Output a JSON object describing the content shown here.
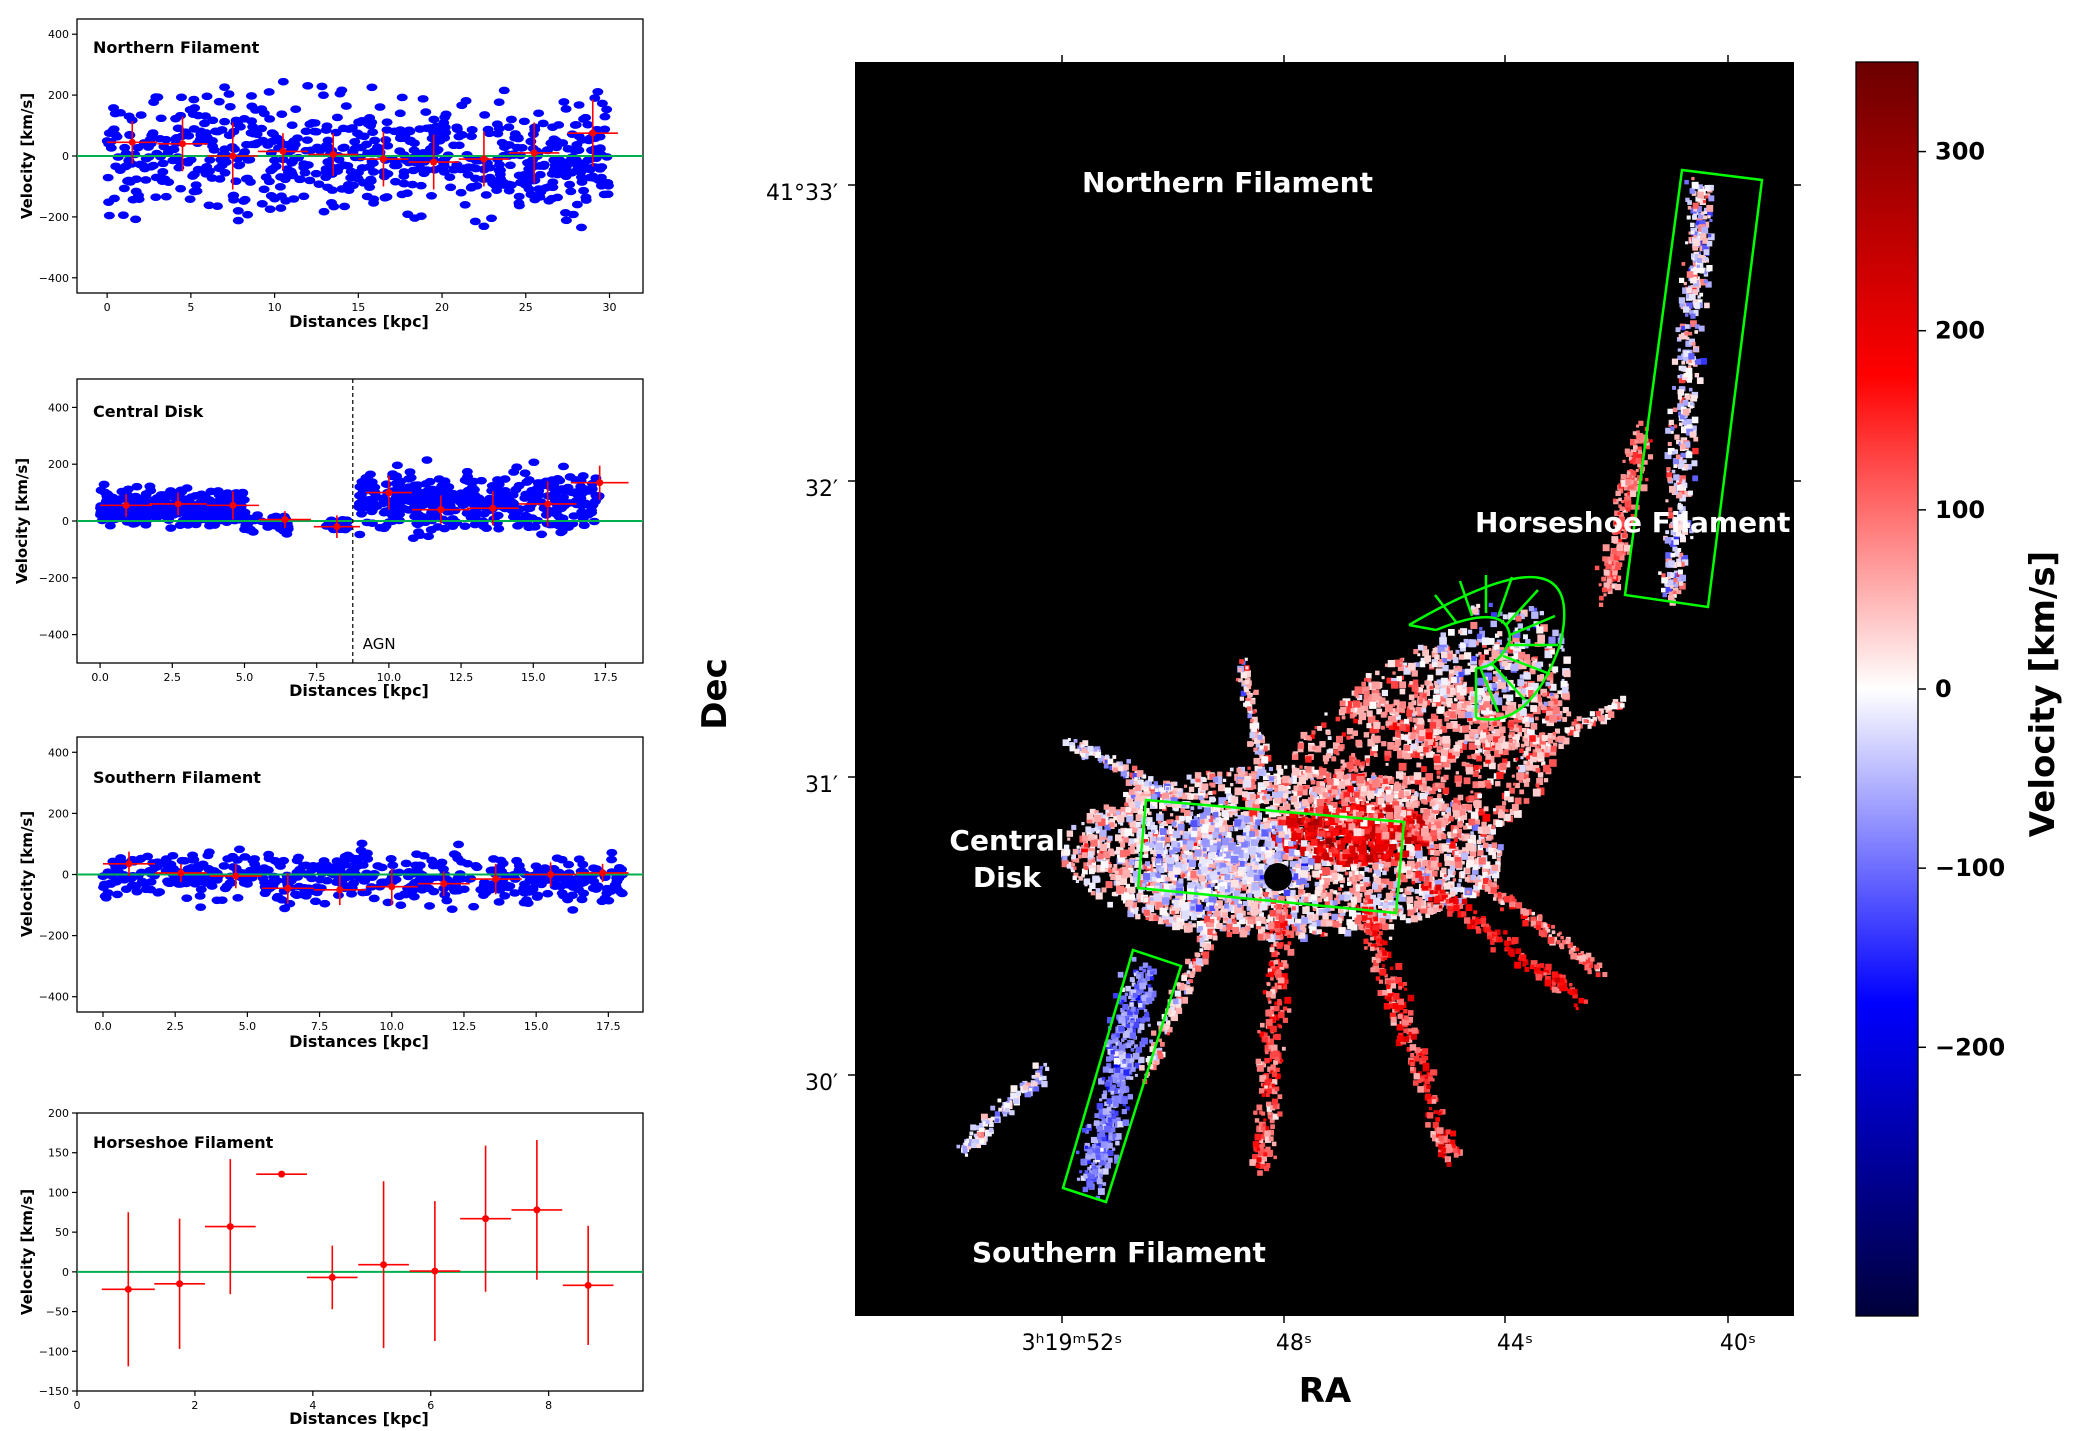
{
  "panels": [
    {
      "id": "northern",
      "title": "Northern Filament",
      "xlabel": "Distances [kpc]",
      "ylabel": "Velocity [km/s]",
      "xlim": [
        -1.8,
        32
      ],
      "ylim": [
        -450,
        450
      ],
      "xticks": [
        0,
        5,
        10,
        15,
        20,
        25,
        30
      ],
      "xtick_labels": [
        "0",
        "5",
        "10",
        "15",
        "20",
        "25",
        "30"
      ],
      "yticks": [
        -400,
        -200,
        0,
        200,
        400
      ],
      "ytick_labels": [
        "−400",
        "−200",
        "0",
        "200",
        "400"
      ],
      "scatter_range": [
        0,
        30
      ],
      "scatter_spread": 130,
      "binned": [
        {
          "x": 1.5,
          "y": 45,
          "xerr": 1.5,
          "yerr": 70
        },
        {
          "x": 4.5,
          "y": 40,
          "xerr": 1.5,
          "yerr": 90
        },
        {
          "x": 7.5,
          "y": 0,
          "xerr": 1.5,
          "yerr": 110
        },
        {
          "x": 10.5,
          "y": 15,
          "xerr": 1.5,
          "yerr": 60
        },
        {
          "x": 13.5,
          "y": 5,
          "xerr": 1.5,
          "yerr": 70
        },
        {
          "x": 16.5,
          "y": -10,
          "xerr": 1.5,
          "yerr": 90
        },
        {
          "x": 19.5,
          "y": -20,
          "xerr": 1.5,
          "yerr": 90
        },
        {
          "x": 22.5,
          "y": -10,
          "xerr": 1.5,
          "yerr": 90
        },
        {
          "x": 25.5,
          "y": 10,
          "xerr": 1.5,
          "yerr": 100
        },
        {
          "x": 29,
          "y": 75,
          "xerr": 1.5,
          "yerr": 110
        }
      ]
    },
    {
      "id": "central",
      "title": "Central Disk",
      "xlabel": "Distances [kpc]",
      "ylabel": "Velocity [km/s]",
      "xlim": [
        -0.8,
        18.8
      ],
      "ylim": [
        -500,
        500
      ],
      "xticks": [
        0,
        2.5,
        5,
        7.5,
        10,
        12.5,
        15,
        17.5
      ],
      "xtick_labels": [
        "0.0",
        "2.5",
        "5.0",
        "7.5",
        "10.0",
        "12.5",
        "15.0",
        "17.5"
      ],
      "yticks": [
        -400,
        -200,
        0,
        200,
        400
      ],
      "ytick_labels": [
        "−400",
        "−200",
        "0",
        "200",
        "400"
      ],
      "agn_x": 8.75,
      "agn_label": "AGN",
      "binned": [
        {
          "x": 0.9,
          "y": 55,
          "xerr": 0.9,
          "yerr": 40
        },
        {
          "x": 2.7,
          "y": 60,
          "xerr": 1.0,
          "yerr": 40
        },
        {
          "x": 4.6,
          "y": 55,
          "xerr": 0.9,
          "yerr": 50
        },
        {
          "x": 6.4,
          "y": 5,
          "xerr": 0.9,
          "yerr": 30
        },
        {
          "x": 8.2,
          "y": -20,
          "xerr": 0.8,
          "yerr": 40
        },
        {
          "x": 10.0,
          "y": 100,
          "xerr": 0.8,
          "yerr": 60
        },
        {
          "x": 11.8,
          "y": 40,
          "xerr": 1.0,
          "yerr": 50
        },
        {
          "x": 13.6,
          "y": 45,
          "xerr": 0.9,
          "yerr": 60
        },
        {
          "x": 15.5,
          "y": 60,
          "xerr": 1.0,
          "yerr": 80
        },
        {
          "x": 17.3,
          "y": 135,
          "xerr": 1.0,
          "yerr": 60
        }
      ]
    },
    {
      "id": "southern",
      "title": "Southern Filament",
      "xlabel": "Distances [kpc]",
      "ylabel": "Velocity [km/s]",
      "xlim": [
        -0.9,
        18.7
      ],
      "ylim": [
        -450,
        450
      ],
      "xticks": [
        0,
        2.5,
        5,
        7.5,
        10,
        12.5,
        15,
        17.5
      ],
      "xtick_labels": [
        "0.0",
        "2.5",
        "5.0",
        "7.5",
        "10.0",
        "12.5",
        "15.0",
        "17.5"
      ],
      "yticks": [
        -400,
        -200,
        0,
        200,
        400
      ],
      "ytick_labels": [
        "−400",
        "−200",
        "0",
        "200",
        "400"
      ],
      "scatter_range": [
        0,
        18
      ],
      "scatter_spread": 80,
      "binned": [
        {
          "x": 0.9,
          "y": 35,
          "xerr": 0.9,
          "yerr": 40
        },
        {
          "x": 2.7,
          "y": 5,
          "xerr": 0.9,
          "yerr": 30
        },
        {
          "x": 4.6,
          "y": -5,
          "xerr": 0.9,
          "yerr": 40
        },
        {
          "x": 6.4,
          "y": -45,
          "xerr": 0.9,
          "yerr": 50
        },
        {
          "x": 8.2,
          "y": -50,
          "xerr": 0.9,
          "yerr": 50
        },
        {
          "x": 10.0,
          "y": -40,
          "xerr": 0.9,
          "yerr": 60
        },
        {
          "x": 11.8,
          "y": -30,
          "xerr": 0.9,
          "yerr": 40
        },
        {
          "x": 13.6,
          "y": -15,
          "xerr": 0.9,
          "yerr": 50
        },
        {
          "x": 15.5,
          "y": 0,
          "xerr": 0.9,
          "yerr": 40
        },
        {
          "x": 17.3,
          "y": 5,
          "xerr": 0.9,
          "yerr": 30
        }
      ]
    },
    {
      "id": "horseshoe",
      "title": "Horseshoe Filament",
      "xlabel": "Distances [kpc]",
      "ylabel": "Velocity [km/s]",
      "xlim": [
        0,
        9.6
      ],
      "ylim": [
        -150,
        200
      ],
      "xticks": [
        0,
        2,
        4,
        6,
        8
      ],
      "xtick_labels": [
        "0",
        "2",
        "4",
        "6",
        "8"
      ],
      "yticks": [
        -150,
        -100,
        -50,
        0,
        50,
        100,
        150,
        200
      ],
      "ytick_labels": [
        "−150",
        "−100",
        "−50",
        "0",
        "50",
        "100",
        "150",
        "200"
      ],
      "binned": [
        {
          "x": 0.87,
          "y": -22,
          "xerr": 0.45,
          "yerr": 97
        },
        {
          "x": 1.74,
          "y": -15,
          "xerr": 0.43,
          "yerr": 82
        },
        {
          "x": 2.6,
          "y": 57,
          "xerr": 0.43,
          "yerr": 85
        },
        {
          "x": 3.47,
          "y": 123,
          "xerr": 0.43,
          "yerr": 0
        },
        {
          "x": 4.33,
          "y": -7,
          "xerr": 0.43,
          "yerr": 40
        },
        {
          "x": 5.2,
          "y": 9,
          "xerr": 0.43,
          "yerr": 105
        },
        {
          "x": 6.07,
          "y": 1,
          "xerr": 0.43,
          "yerr": 88
        },
        {
          "x": 6.93,
          "y": 67,
          "xerr": 0.43,
          "yerr": 92
        },
        {
          "x": 7.8,
          "y": 78,
          "xerr": 0.43,
          "yerr": 88
        },
        {
          "x": 8.67,
          "y": -17,
          "xerr": 0.43,
          "yerr": 75
        }
      ]
    }
  ],
  "map": {
    "xlabel": "RA",
    "ylabel": "Dec",
    "ra_tick_labels": [
      "3ʰ19ᵐ52ˢ",
      "48ˢ",
      "44ˢ",
      "40ˢ"
    ],
    "dec_tick_labels": [
      "41°33′",
      "32′",
      "31′",
      "30′"
    ],
    "region_labels": {
      "northern": "Northern Filament",
      "horseshoe": "Horseshoe Filament",
      "central_line1": "Central",
      "central_line2": "Disk",
      "southern": "Southern Filament"
    }
  },
  "colorbar": {
    "label": "Velocity [km/s]",
    "ticks": [
      300,
      200,
      100,
      0,
      -100,
      -200
    ],
    "tick_labels": [
      "300",
      "200",
      "100",
      "0",
      "−100",
      "−200"
    ],
    "range": [
      -350,
      350
    ]
  },
  "colors": {
    "scatter": "#0000ff",
    "binned": "#ff0000",
    "zero_line": "#00b050",
    "region_box": "#00ff00",
    "map_bg": "#000000"
  }
}
